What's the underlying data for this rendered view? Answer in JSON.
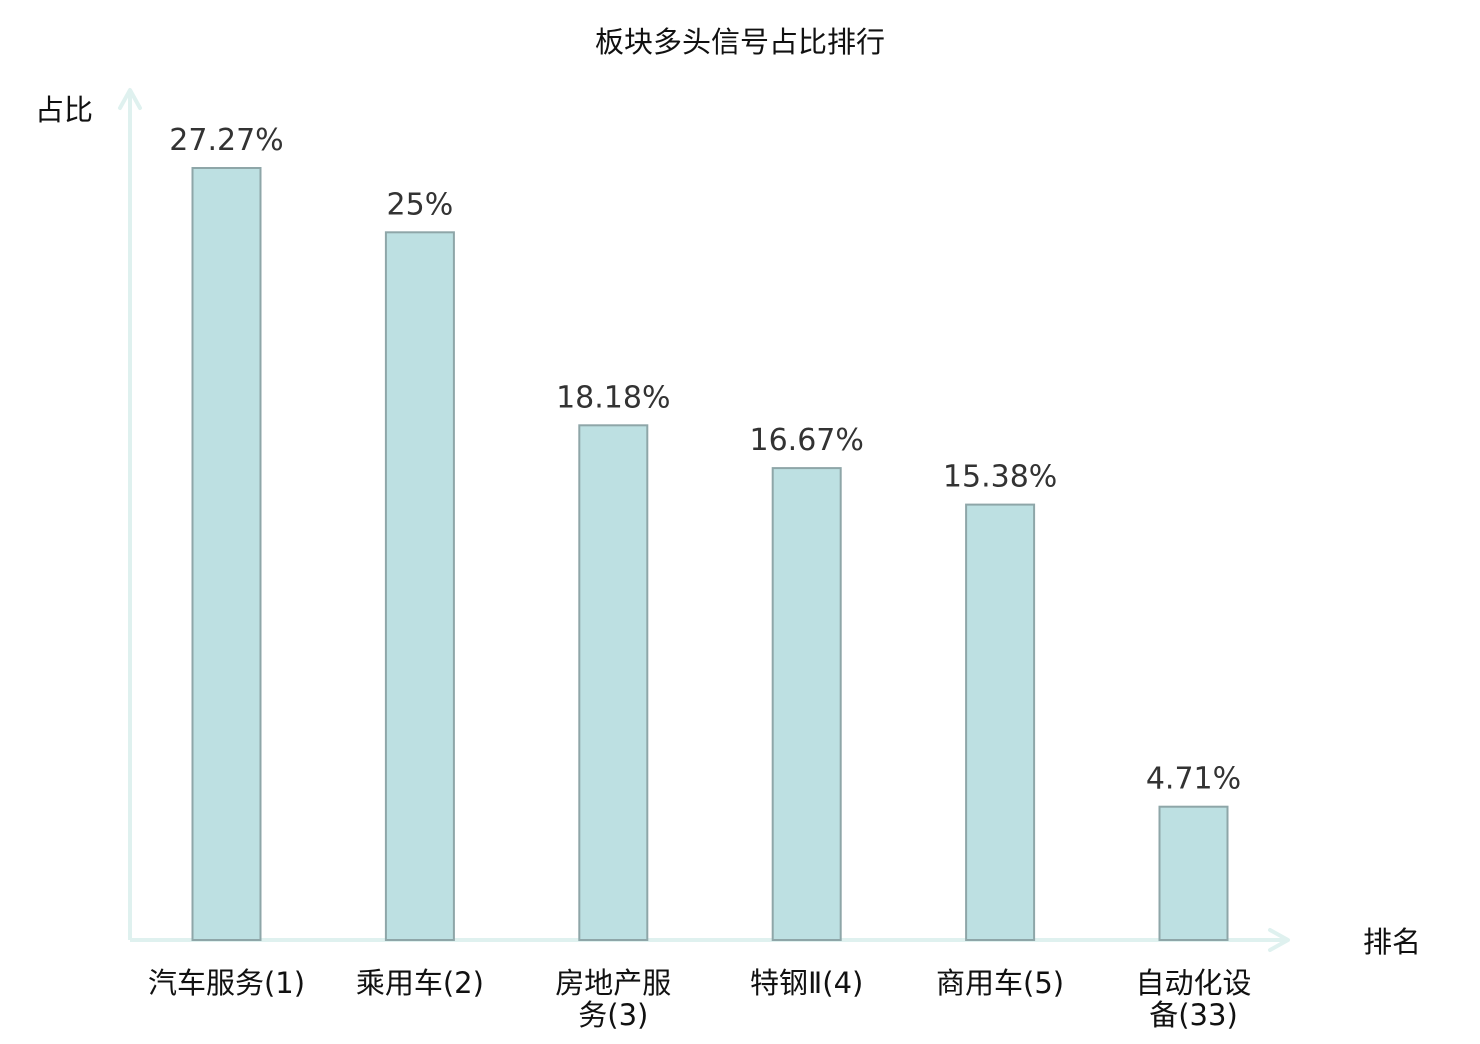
{
  "chart_data": {
    "type": "bar",
    "title": "板块多头信号占比排行",
    "ylabel": "占比",
    "xlabel": "排名",
    "ylim": [
      0,
      30
    ],
    "grid": false,
    "legend": "none",
    "categories": [
      [
        "汽车服务(1)"
      ],
      [
        "乘用车(2)"
      ],
      [
        "房地产服",
        "务(3)"
      ],
      [
        "特钢Ⅱ(4)"
      ],
      [
        "商用车(5)"
      ],
      [
        "自动化设",
        "备(33)"
      ]
    ],
    "values": [
      27.27,
      25,
      18.18,
      16.67,
      15.38,
      4.71
    ],
    "value_labels": [
      "27.27%",
      "25%",
      "18.18%",
      "16.67%",
      "15.38%",
      "4.71%"
    ],
    "highlight_index": 5
  },
  "colors": {
    "bar_fill": "#bde0e2",
    "bar_stroke": "#8ea6a8",
    "axis": "#dff1ef",
    "text": "#111111",
    "value_text": "#333333",
    "highlight": "#e8262a"
  }
}
